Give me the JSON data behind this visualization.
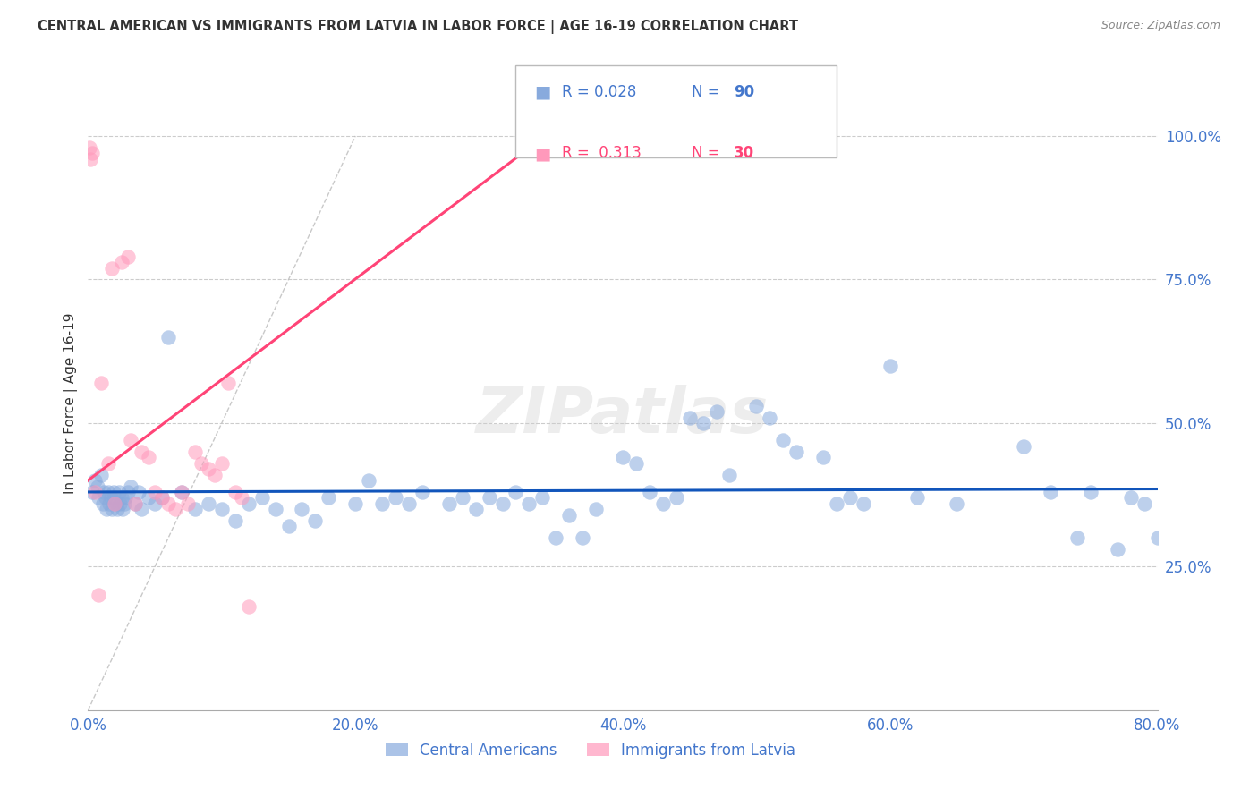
{
  "title": "CENTRAL AMERICAN VS IMMIGRANTS FROM LATVIA IN LABOR FORCE | AGE 16-19 CORRELATION CHART",
  "source": "Source: ZipAtlas.com",
  "ylabel_left": "In Labor Force | Age 16-19",
  "x_tick_values": [
    0,
    20,
    40,
    60,
    80
  ],
  "y_tick_values": [
    25,
    50,
    75,
    100
  ],
  "xlim": [
    0,
    80
  ],
  "ylim": [
    0,
    107
  ],
  "blue_R": 0.028,
  "blue_N": 90,
  "pink_R": 0.313,
  "pink_N": 30,
  "blue_color": "#88AADD",
  "pink_color": "#FF99BB",
  "blue_line_color": "#1155BB",
  "pink_line_color": "#FF4477",
  "ref_line_color": "#BBBBBB",
  "grid_color": "#CCCCCC",
  "legend_label_blue": "Central Americans",
  "legend_label_pink": "Immigrants from Latvia",
  "watermark": "ZIPatlas",
  "title_color": "#333333",
  "source_color": "#888888",
  "axis_label_color": "#333333",
  "tick_color": "#4477CC",
  "blue_scatter_x": [
    0.3,
    0.5,
    0.7,
    0.8,
    1.0,
    1.1,
    1.2,
    1.3,
    1.4,
    1.5,
    1.6,
    1.7,
    1.8,
    1.9,
    2.0,
    2.1,
    2.2,
    2.3,
    2.4,
    2.5,
    2.6,
    2.7,
    2.8,
    3.0,
    3.2,
    3.5,
    3.8,
    4.0,
    4.5,
    5.0,
    5.5,
    6.0,
    7.0,
    8.0,
    9.0,
    10.0,
    11.0,
    12.0,
    13.0,
    14.0,
    15.0,
    16.0,
    17.0,
    18.0,
    20.0,
    21.0,
    22.0,
    23.0,
    24.0,
    25.0,
    27.0,
    28.0,
    29.0,
    30.0,
    31.0,
    32.0,
    33.0,
    34.0,
    35.0,
    36.0,
    37.0,
    38.0,
    40.0,
    41.0,
    42.0,
    43.0,
    44.0,
    45.0,
    46.0,
    47.0,
    48.0,
    50.0,
    51.0,
    52.0,
    53.0,
    55.0,
    56.0,
    57.0,
    58.0,
    60.0,
    62.0,
    65.0,
    70.0,
    72.0,
    74.0,
    75.0,
    77.0,
    78.0,
    79.0,
    80.0
  ],
  "blue_scatter_y": [
    38,
    40,
    39,
    37,
    41,
    36,
    38,
    37,
    35,
    38,
    36,
    37,
    35,
    38,
    37,
    36,
    35,
    38,
    36,
    37,
    35,
    36,
    37,
    38,
    39,
    36,
    38,
    35,
    37,
    36,
    37,
    65,
    38,
    35,
    36,
    35,
    33,
    36,
    37,
    35,
    32,
    35,
    33,
    37,
    36,
    40,
    36,
    37,
    36,
    38,
    36,
    37,
    35,
    37,
    36,
    38,
    36,
    37,
    30,
    34,
    30,
    35,
    44,
    43,
    38,
    36,
    37,
    51,
    50,
    52,
    41,
    53,
    51,
    47,
    45,
    44,
    36,
    37,
    36,
    60,
    37,
    36,
    46,
    38,
    30,
    38,
    28,
    37,
    36,
    30
  ],
  "pink_scatter_x": [
    0.1,
    0.2,
    0.3,
    0.5,
    0.8,
    1.0,
    1.5,
    1.8,
    2.0,
    2.5,
    3.0,
    3.2,
    3.5,
    4.0,
    4.5,
    5.0,
    5.5,
    6.0,
    6.5,
    7.0,
    7.5,
    8.0,
    8.5,
    9.0,
    9.5,
    10.0,
    10.5,
    11.0,
    11.5,
    12.0
  ],
  "pink_scatter_y": [
    98,
    96,
    97,
    38,
    20,
    57,
    43,
    77,
    36,
    78,
    79,
    47,
    36,
    45,
    44,
    38,
    37,
    36,
    35,
    38,
    36,
    45,
    43,
    42,
    41,
    43,
    57,
    38,
    37,
    18
  ]
}
